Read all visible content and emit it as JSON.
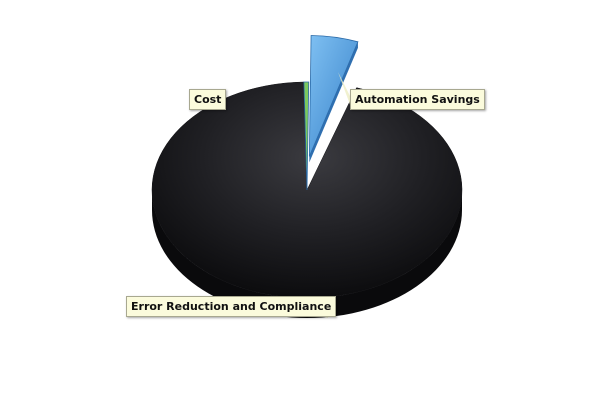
{
  "chart_data": {
    "type": "pie",
    "style": "3d",
    "title": "",
    "slices": [
      {
        "label": "Error Reduction and Compliance",
        "value": 94.5,
        "color": "#1c1c1f"
      },
      {
        "label": "Cost",
        "value": 0.5,
        "color": "#7dc95e"
      },
      {
        "label": "Automation Savings",
        "value": 5.0,
        "color": "#4a94d8",
        "exploded": true
      }
    ],
    "legend": "none",
    "labels": "callouts"
  }
}
